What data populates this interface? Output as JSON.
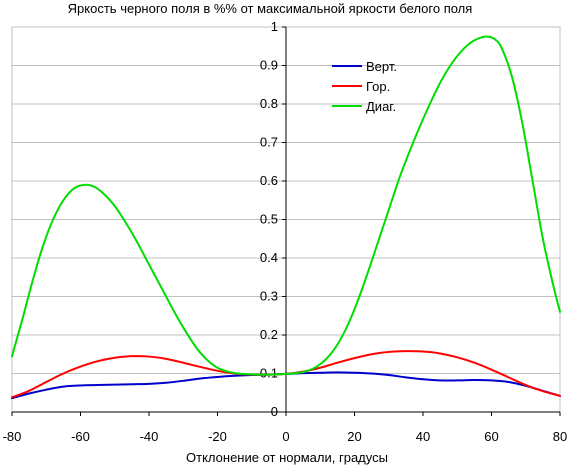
{
  "chart_data": {
    "type": "line",
    "title": "Яркость черного поля в %% от максимальной яркости белого поля",
    "xlabel": "Отклонение от нормали, градусы",
    "ylabel": "",
    "xlim": [
      -80,
      80
    ],
    "ylim": [
      0,
      1
    ],
    "x_ticks": [
      "-80",
      "-60",
      "-40",
      "-20",
      "0",
      "20",
      "40",
      "60",
      "80"
    ],
    "y_ticks": [
      "0",
      "0.1",
      "0.2",
      "0.3",
      "0.4",
      "0.5",
      "0.6",
      "0.7",
      "0.8",
      "0.9",
      "1"
    ],
    "grid": true,
    "legend_position": "top-right",
    "series": [
      {
        "name": "Верт.",
        "color": "#0000cc",
        "x": [
          -80,
          -75,
          -70,
          -65,
          -60,
          -55,
          -50,
          -45,
          -40,
          -35,
          -30,
          -25,
          -20,
          -15,
          -10,
          -5,
          0,
          5,
          10,
          15,
          20,
          25,
          30,
          35,
          40,
          45,
          50,
          55,
          60,
          65,
          70,
          75,
          80
        ],
        "y": [
          0.036,
          0.048,
          0.058,
          0.066,
          0.069,
          0.07,
          0.071,
          0.072,
          0.073,
          0.076,
          0.081,
          0.087,
          0.091,
          0.094,
          0.096,
          0.097,
          0.099,
          0.101,
          0.102,
          0.103,
          0.102,
          0.1,
          0.096,
          0.09,
          0.085,
          0.082,
          0.082,
          0.083,
          0.082,
          0.078,
          0.068,
          0.055,
          0.042
        ]
      },
      {
        "name": "Гор.",
        "color": "#ff0000",
        "x": [
          -80,
          -75,
          -70,
          -65,
          -60,
          -55,
          -50,
          -45,
          -40,
          -35,
          -30,
          -25,
          -20,
          -15,
          -10,
          -5,
          0,
          5,
          10,
          15,
          20,
          25,
          30,
          35,
          40,
          45,
          50,
          55,
          60,
          65,
          70,
          75,
          80
        ],
        "y": [
          0.038,
          0.055,
          0.078,
          0.1,
          0.118,
          0.132,
          0.141,
          0.145,
          0.144,
          0.138,
          0.128,
          0.117,
          0.107,
          0.1,
          0.097,
          0.097,
          0.099,
          0.105,
          0.115,
          0.128,
          0.14,
          0.15,
          0.156,
          0.158,
          0.157,
          0.152,
          0.142,
          0.128,
          0.11,
          0.09,
          0.07,
          0.054,
          0.042
        ]
      },
      {
        "name": "Диаг.",
        "color": "#00dd00",
        "x": [
          -80,
          -77,
          -74,
          -71,
          -68,
          -65,
          -62,
          -59,
          -56,
          -53,
          -50,
          -47,
          -44,
          -41,
          -38,
          -35,
          -32,
          -29,
          -26,
          -23,
          -20,
          -17,
          -14,
          -11,
          -8,
          -5,
          -2,
          0,
          3,
          6,
          9,
          12,
          15,
          18,
          21,
          24,
          27,
          30,
          33,
          36,
          39,
          42,
          45,
          48,
          51,
          54,
          57,
          59,
          61,
          63,
          66,
          69,
          72,
          75,
          78,
          80
        ],
        "y": [
          0.145,
          0.24,
          0.34,
          0.43,
          0.5,
          0.55,
          0.58,
          0.59,
          0.585,
          0.565,
          0.535,
          0.495,
          0.45,
          0.4,
          0.35,
          0.3,
          0.25,
          0.205,
          0.165,
          0.135,
          0.115,
          0.105,
          0.1,
          0.098,
          0.097,
          0.097,
          0.098,
          0.099,
          0.101,
          0.106,
          0.118,
          0.14,
          0.175,
          0.225,
          0.29,
          0.365,
          0.445,
          0.525,
          0.605,
          0.675,
          0.74,
          0.8,
          0.855,
          0.9,
          0.935,
          0.96,
          0.973,
          0.975,
          0.968,
          0.945,
          0.87,
          0.75,
          0.6,
          0.45,
          0.33,
          0.26
        ]
      }
    ]
  }
}
